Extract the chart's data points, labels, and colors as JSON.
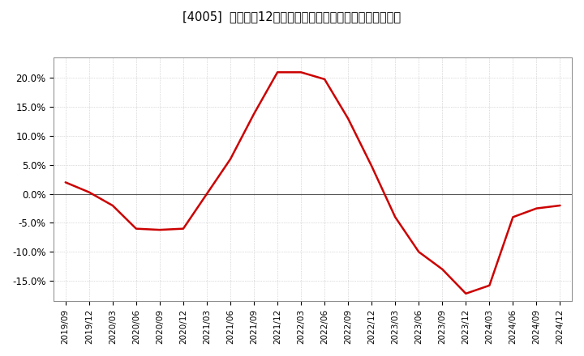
{
  "title": "[4005]  売上高の12か月移動合計の対前年同期増減率の推移",
  "line_color": "#cc0000",
  "background_color": "#ffffff",
  "plot_bg_color": "#ffffff",
  "grid_color": "#bbbbbb",
  "ylim": [
    -0.185,
    0.235
  ],
  "yticks": [
    -0.15,
    -0.1,
    -0.05,
    0.0,
    0.05,
    0.1,
    0.15,
    0.2
  ],
  "x_labels": [
    "2019/09",
    "2019/12",
    "2020/03",
    "2020/06",
    "2020/09",
    "2020/12",
    "2021/03",
    "2021/06",
    "2021/09",
    "2021/12",
    "2022/03",
    "2022/06",
    "2022/09",
    "2022/12",
    "2023/03",
    "2023/06",
    "2023/09",
    "2023/12",
    "2024/03",
    "2024/06",
    "2024/09",
    "2024/12"
  ],
  "data": [
    [
      "2019/09",
      0.02
    ],
    [
      "2019/12",
      0.003
    ],
    [
      "2020/03",
      -0.02
    ],
    [
      "2020/06",
      -0.06
    ],
    [
      "2020/09",
      -0.062
    ],
    [
      "2020/12",
      -0.06
    ],
    [
      "2021/03",
      0.0
    ],
    [
      "2021/06",
      0.06
    ],
    [
      "2021/09",
      0.138
    ],
    [
      "2021/12",
      0.21
    ],
    [
      "2022/03",
      0.21
    ],
    [
      "2022/06",
      0.198
    ],
    [
      "2022/09",
      0.13
    ],
    [
      "2022/12",
      0.048
    ],
    [
      "2023/03",
      -0.04
    ],
    [
      "2023/06",
      -0.1
    ],
    [
      "2023/09",
      -0.13
    ],
    [
      "2023/12",
      -0.172
    ],
    [
      "2024/03",
      -0.158
    ],
    [
      "2024/06",
      -0.04
    ],
    [
      "2024/09",
      -0.025
    ],
    [
      "2024/12",
      -0.02
    ]
  ],
  "title_fontsize": 10.5,
  "tick_fontsize": 7.5,
  "ytick_fontsize": 8.5,
  "linewidth": 1.8
}
